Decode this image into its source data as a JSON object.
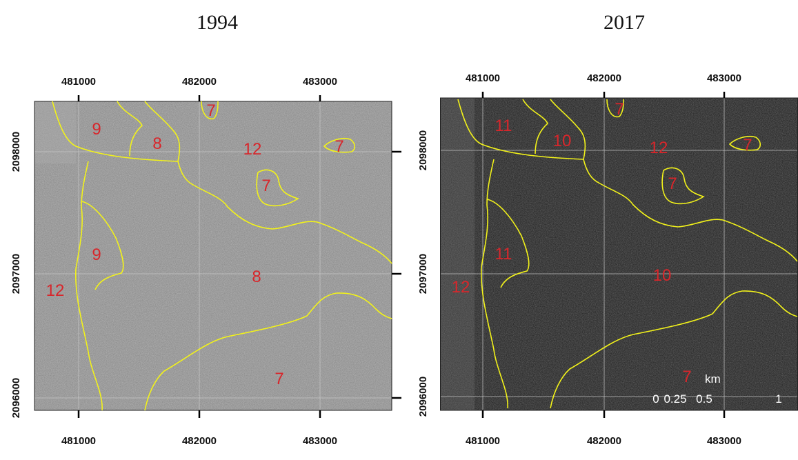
{
  "titles": [
    "1994",
    "2017"
  ],
  "panels": [
    {
      "x_ticks": [
        "481000",
        "482000",
        "483000"
      ],
      "y_ticks": [
        "2098000",
        "2097000",
        "2096000"
      ],
      "zone_labels": [
        "9",
        "8",
        "7",
        "12",
        "7",
        "7",
        "9",
        "8",
        "12",
        "7"
      ]
    },
    {
      "x_ticks": [
        "481000",
        "482000",
        "483000"
      ],
      "y_ticks": [
        "2098000",
        "2097000",
        "2096000"
      ],
      "zone_labels": [
        "11",
        "10",
        "7",
        "12",
        "7",
        "7",
        "11",
        "10",
        "12",
        "7"
      ]
    }
  ],
  "scale_bar": {
    "unit": "km",
    "labels": [
      "0",
      "0.25",
      "0.5",
      "1"
    ]
  }
}
